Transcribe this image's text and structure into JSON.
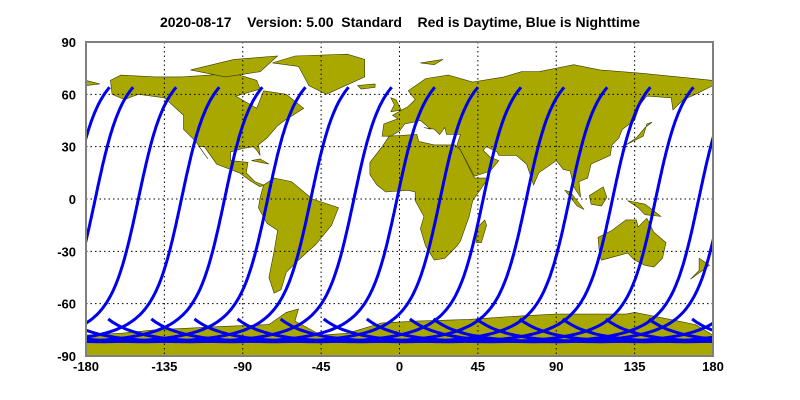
{
  "title": "2020-08-17    Version: 5.00  Standard    Red is Daytime, Blue is Nighttime",
  "map": {
    "projection": "equirectangular",
    "x_ticks": [
      "-180",
      "-135",
      "-90",
      "-45",
      "0",
      "45",
      "90",
      "135",
      "180"
    ],
    "x_tick_values": [
      -180,
      -135,
      -90,
      -45,
      0,
      45,
      90,
      135,
      180
    ],
    "y_ticks": [
      "90",
      "60",
      "30",
      "0",
      "-30",
      "-60",
      "-90"
    ],
    "y_tick_values": [
      90,
      60,
      30,
      0,
      -30,
      -60,
      -90
    ],
    "xlim": [
      -180,
      180
    ],
    "ylim": [
      -90,
      90
    ],
    "grid": true,
    "colors": {
      "land": "#a8a800",
      "coast": "#3a3a00",
      "night_track": "#0000ee",
      "frame": "#7f7f7f"
    },
    "tracks": {
      "type": "satellite ground track (nighttime, descending)",
      "count": 15,
      "northern_end_lat": 64,
      "southern_turn_lat": -82,
      "spacing_deg": 24.75
    }
  }
}
